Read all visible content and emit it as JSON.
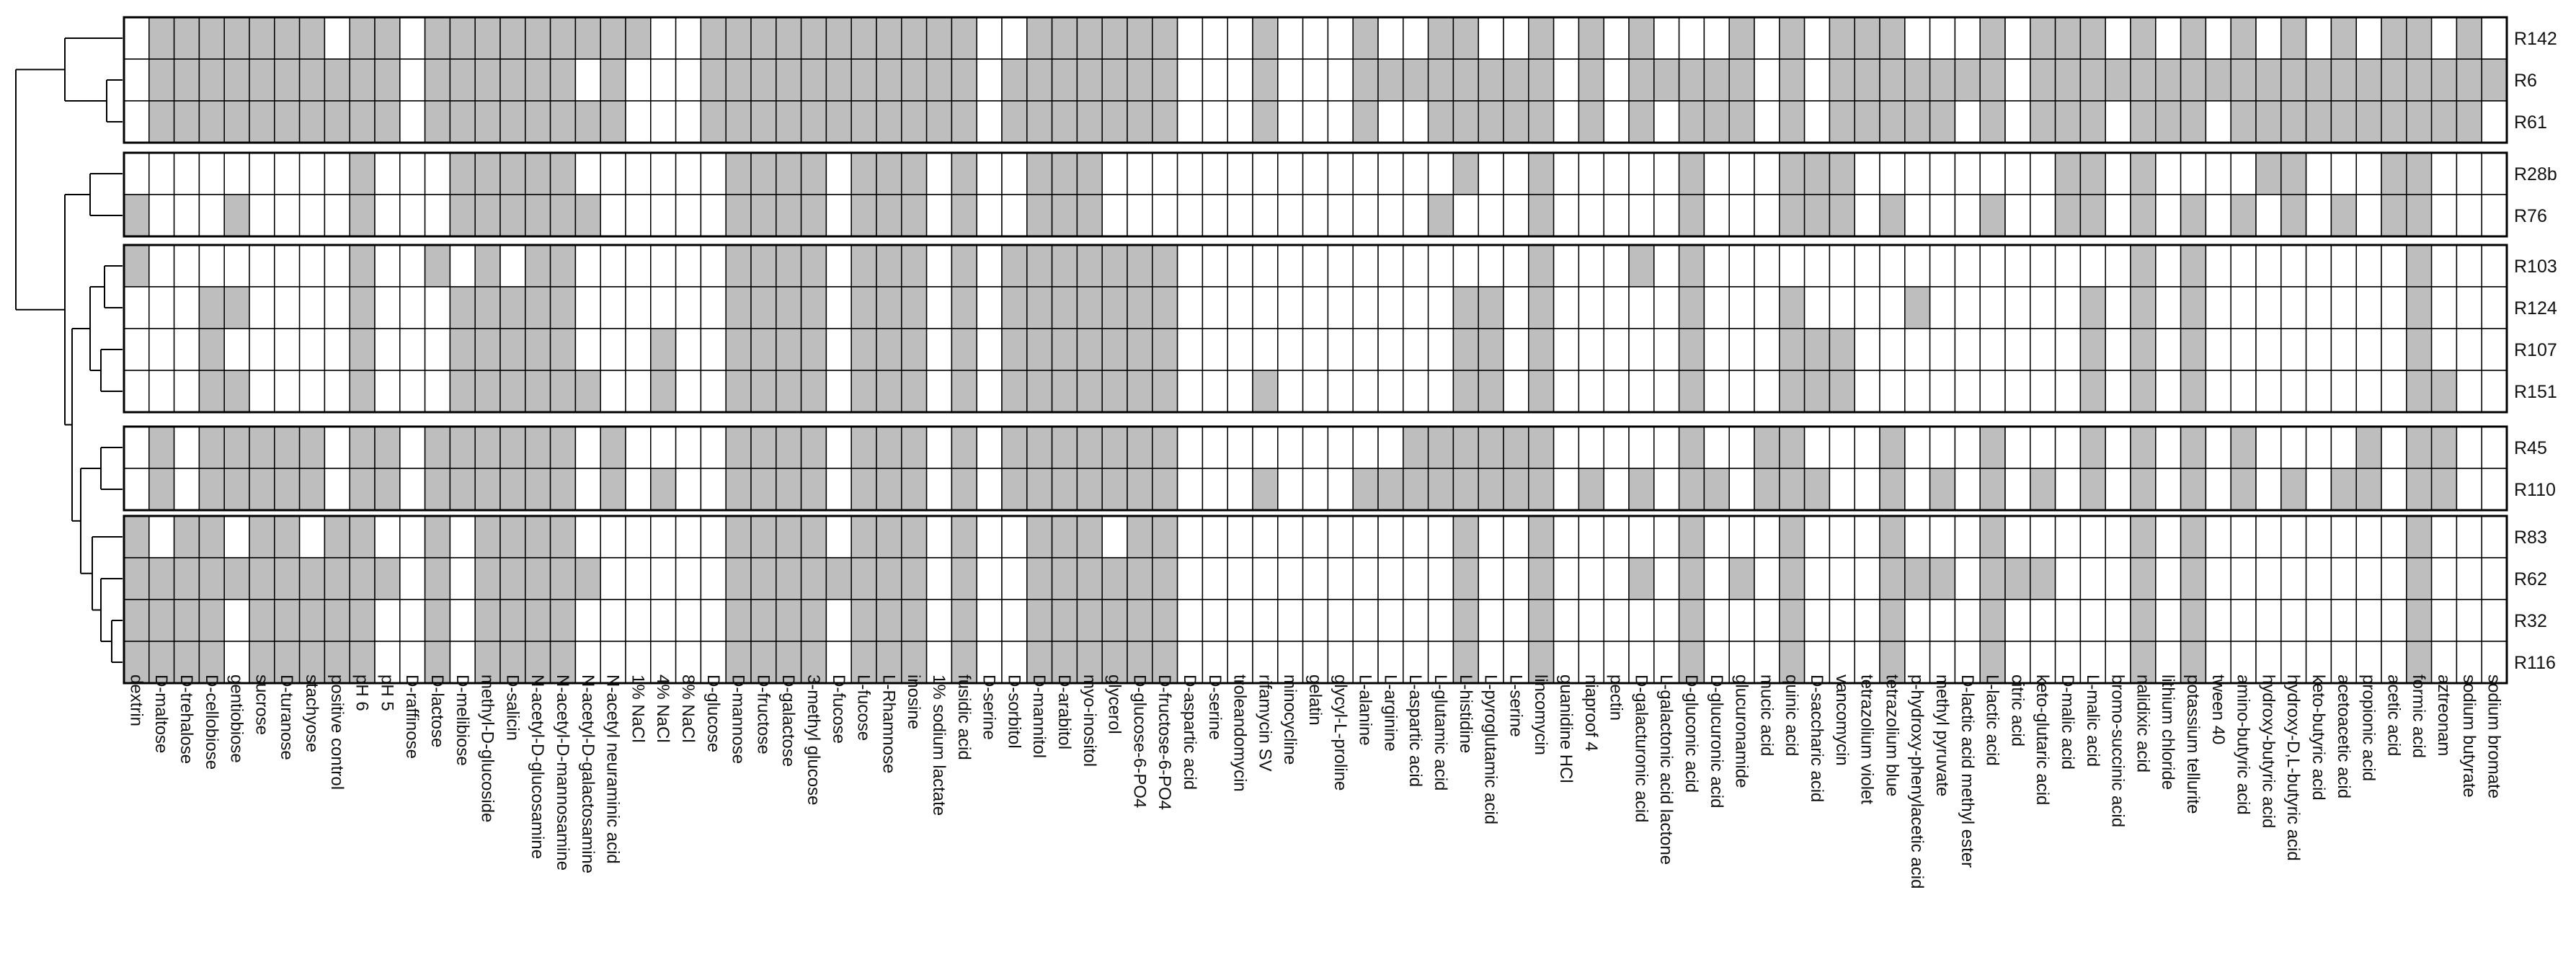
{
  "chart_data": {
    "type": "heatmap",
    "title": "",
    "xlabel": "",
    "ylabel": "",
    "legend": "none",
    "dendrogram": "rows",
    "colors": {
      "present": "#bebebe",
      "absent": "#ffffff",
      "border": "#000000"
    },
    "columns": [
      "dextrin",
      "D-maltose",
      "D-trehalose",
      "D-cellobiose",
      "gentiobiose",
      "sucrose",
      "D-turanose",
      "stachyose",
      "positive control",
      "pH 6",
      "pH 5",
      "D-raffinose",
      "D-lactose",
      "D-melibiose",
      "methyl-D-glucoside",
      "D-salicin",
      "N-acetyl-D-glucosamine",
      "N-acetyl-D-mannosamine",
      "N-acetyl-D-galactosamine",
      "N-acetyl neuraminic acid",
      "1% NaCl",
      "4% NaCl",
      "8% NaCl",
      "D-glucose",
      "D-mannose",
      "D-fructose",
      "D-galactose",
      "3-methyl glucose",
      "D-fucose",
      "L-fucose",
      "L-Rhamnose",
      "inosine",
      "1% sodium lactate",
      "fusidic acid",
      "D-serine",
      "D-sorbitol",
      "D-mannitol",
      "D-arabitol",
      "myo-inositol",
      "glycerol",
      "D-glucose-6-PO4",
      "D-fructose-6-PO4",
      "D-aspartic acid",
      "D-serine",
      "troleandomycin",
      "rifamycin SV",
      "minocycline",
      "gelatin",
      "glycyl-L-proline",
      "L-alanine",
      "L-arginine",
      "L-aspartic acid",
      "L-glutamic acid",
      "L-histidine",
      "L-pyroglutamic acid",
      "L-serine",
      "lincomycin",
      "guanidine HCl",
      "niaproof 4",
      "pectin",
      "D-galacturonic acid",
      "L-galactonic acid lactone",
      "D-gluconic acid",
      "D-glucuronic acid",
      "glucuronamide",
      "mucic acid",
      "quinic acid",
      "D-saccharic acid",
      "vancomycin",
      "tetrazolium violet",
      "tetrazolium blue",
      "p-hydroxy-phenylacetic acid",
      "methyl pyruvate",
      "D-lactic acid methyl ester",
      "L-lactic acid",
      "citric acid",
      "keto-glutaric acid",
      "D-malic acid",
      "L-malic acid",
      "bromo-succinic acid",
      "nalidixic acid",
      "lithium chloride",
      "potassium tellurite",
      "tween 40",
      "amino-butyric acid",
      "hydroxy-butyric acid",
      "hydroxy-D,L-butyric acid",
      "keto-butyric acid",
      "acetoacetic acid",
      "propionic acid",
      "acetic acid",
      "formic acid",
      "aztreonam",
      "sodium butyrate",
      "sodium bromate"
    ],
    "row_groups": [
      {
        "rows": [
          {
            "name": "R142",
            "present": [
              1,
              2,
              3,
              4,
              5,
              6,
              7,
              9,
              10,
              12,
              13,
              14,
              15,
              16,
              17,
              18,
              19,
              20,
              23,
              24,
              25,
              26,
              27,
              28,
              29,
              30,
              31,
              32,
              33,
              36,
              37,
              38,
              39,
              40,
              41,
              45,
              49,
              52,
              53,
              56,
              58,
              60,
              64,
              66,
              68,
              69,
              70,
              74,
              76,
              77,
              78,
              80,
              82,
              84,
              86,
              88,
              90,
              91,
              93
            ]
          },
          {
            "name": "R6",
            "present": [
              1,
              2,
              3,
              4,
              5,
              6,
              7,
              8,
              9,
              10,
              12,
              13,
              14,
              15,
              16,
              17,
              19,
              23,
              24,
              25,
              26,
              27,
              28,
              29,
              30,
              31,
              32,
              33,
              35,
              36,
              37,
              38,
              39,
              40,
              41,
              45,
              49,
              50,
              51,
              52,
              53,
              54,
              55,
              56,
              58,
              60,
              61,
              62,
              63,
              64,
              66,
              68,
              69,
              70,
              71,
              72,
              73,
              74,
              76,
              77,
              78,
              79,
              80,
              81,
              82,
              83,
              84,
              85,
              86,
              87,
              88,
              89,
              90,
              91,
              92,
              93,
              94
            ]
          },
          {
            "name": "R61",
            "present": [
              1,
              2,
              3,
              4,
              5,
              6,
              7,
              8,
              9,
              10,
              12,
              13,
              14,
              15,
              16,
              17,
              18,
              19,
              23,
              24,
              25,
              26,
              27,
              28,
              29,
              30,
              31,
              32,
              33,
              35,
              36,
              37,
              38,
              39,
              40,
              41,
              45,
              49,
              52,
              53,
              54,
              55,
              56,
              58,
              60,
              62,
              63,
              64,
              66,
              68,
              69,
              70,
              71,
              72,
              74,
              76,
              77,
              78,
              80,
              81,
              82,
              84,
              85,
              86,
              87,
              88,
              89,
              90,
              91,
              92,
              93
            ]
          }
        ]
      },
      {
        "rows": [
          {
            "name": "R28b",
            "present": [
              9,
              13,
              14,
              15,
              16,
              17,
              24,
              25,
              26,
              27,
              29,
              30,
              31,
              33,
              36,
              37,
              38,
              53,
              56,
              62,
              66,
              67,
              68,
              77,
              78,
              80,
              85,
              86,
              90,
              91
            ]
          },
          {
            "name": "R76",
            "present": [
              0,
              4,
              9,
              13,
              14,
              15,
              16,
              17,
              18,
              24,
              25,
              26,
              27,
              29,
              30,
              31,
              33,
              36,
              37,
              38,
              52,
              56,
              62,
              66,
              67,
              68,
              70,
              74,
              77,
              78,
              80,
              82,
              84,
              86,
              88,
              90,
              91
            ]
          }
        ]
      },
      {
        "rows": [
          {
            "name": "R103",
            "present": [
              0,
              9,
              12,
              14,
              16,
              17,
              24,
              25,
              26,
              27,
              29,
              30,
              31,
              33,
              35,
              36,
              37,
              38,
              39,
              40,
              41,
              56,
              60,
              62,
              80,
              82,
              91
            ]
          },
          {
            "name": "R124",
            "present": [
              3,
              4,
              9,
              13,
              14,
              15,
              16,
              17,
              24,
              25,
              26,
              27,
              29,
              30,
              31,
              33,
              35,
              36,
              37,
              38,
              39,
              40,
              41,
              53,
              54,
              56,
              62,
              66,
              71,
              78,
              80,
              82,
              91
            ]
          },
          {
            "name": "R107",
            "present": [
              3,
              9,
              13,
              14,
              15,
              16,
              17,
              21,
              24,
              25,
              26,
              27,
              29,
              30,
              31,
              33,
              35,
              36,
              37,
              38,
              39,
              40,
              41,
              53,
              54,
              56,
              62,
              66,
              67,
              68,
              78,
              80,
              82,
              91
            ]
          },
          {
            "name": "R151",
            "present": [
              3,
              4,
              9,
              13,
              14,
              15,
              16,
              17,
              18,
              21,
              24,
              25,
              26,
              27,
              29,
              30,
              31,
              33,
              35,
              36,
              37,
              38,
              39,
              40,
              41,
              45,
              53,
              54,
              56,
              62,
              66,
              67,
              68,
              78,
              80,
              82,
              91,
              92
            ]
          }
        ]
      },
      {
        "rows": [
          {
            "name": "R45",
            "present": [
              1,
              3,
              4,
              5,
              6,
              7,
              9,
              10,
              12,
              13,
              14,
              15,
              16,
              17,
              19,
              24,
              25,
              26,
              27,
              29,
              30,
              31,
              33,
              35,
              36,
              37,
              38,
              39,
              40,
              41,
              51,
              52,
              53,
              54,
              55,
              56,
              62,
              65,
              66,
              70,
              74,
              78,
              80,
              82,
              84,
              89,
              91,
              92
            ]
          },
          {
            "name": "R110",
            "present": [
              1,
              3,
              4,
              5,
              6,
              7,
              9,
              10,
              12,
              13,
              14,
              15,
              16,
              17,
              19,
              21,
              24,
              25,
              26,
              27,
              29,
              30,
              31,
              33,
              35,
              36,
              37,
              38,
              39,
              40,
              41,
              45,
              49,
              50,
              51,
              52,
              53,
              54,
              55,
              56,
              58,
              60,
              62,
              63,
              65,
              66,
              67,
              70,
              72,
              74,
              76,
              78,
              80,
              82,
              84,
              86,
              88,
              89,
              91,
              92
            ]
          }
        ]
      },
      {
        "rows": [
          {
            "name": "R83",
            "present": [
              0,
              2,
              3,
              5,
              6,
              8,
              9,
              12,
              14,
              15,
              16,
              17,
              24,
              25,
              26,
              27,
              29,
              30,
              31,
              33,
              36,
              37,
              38,
              40,
              41,
              53,
              56,
              62,
              66,
              70,
              74,
              80,
              82,
              91
            ]
          },
          {
            "name": "R62",
            "present": [
              0,
              1,
              2,
              3,
              4,
              5,
              6,
              7,
              8,
              9,
              10,
              12,
              14,
              15,
              16,
              17,
              18,
              24,
              25,
              26,
              27,
              28,
              29,
              30,
              31,
              33,
              36,
              37,
              38,
              39,
              40,
              41,
              53,
              56,
              60,
              62,
              64,
              66,
              70,
              71,
              72,
              74,
              75,
              76,
              80,
              82,
              91
            ]
          },
          {
            "name": "R32",
            "present": [
              0,
              1,
              2,
              3,
              5,
              6,
              7,
              8,
              9,
              12,
              14,
              15,
              16,
              17,
              24,
              25,
              26,
              27,
              29,
              30,
              31,
              33,
              36,
              37,
              38,
              39,
              40,
              41,
              53,
              56,
              62,
              66,
              70,
              74,
              80,
              82,
              91
            ]
          },
          {
            "name": "R116",
            "present": [
              0,
              1,
              2,
              3,
              5,
              6,
              7,
              8,
              9,
              12,
              14,
              15,
              16,
              17,
              24,
              25,
              26,
              27,
              29,
              30,
              31,
              33,
              36,
              37,
              38,
              39,
              40,
              41,
              53,
              56,
              62,
              66,
              70,
              74,
              80,
              82,
              91
            ]
          }
        ]
      }
    ]
  }
}
